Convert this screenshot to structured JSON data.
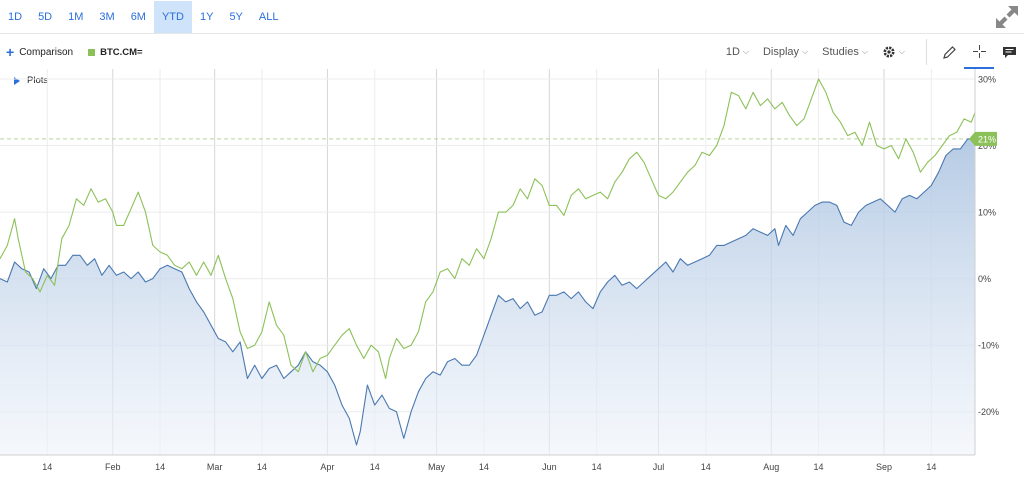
{
  "range_buttons": [
    {
      "label": "1D",
      "active": false
    },
    {
      "label": "5D",
      "active": false
    },
    {
      "label": "1M",
      "active": false
    },
    {
      "label": "3M",
      "active": false
    },
    {
      "label": "6M",
      "active": false
    },
    {
      "label": "YTD",
      "active": true
    },
    {
      "label": "1Y",
      "active": false
    },
    {
      "label": "5Y",
      "active": false
    },
    {
      "label": "ALL",
      "active": false
    }
  ],
  "toolbar": {
    "comparison_label": "Comparison",
    "symbol": "BTC.CM=",
    "interval_label": "1D",
    "display_label": "Display",
    "studies_label": "Studies"
  },
  "plots_label": "Plots",
  "icons": {
    "expand": "expand-arrows-icon",
    "settings": "gear-icon",
    "draw": "pencil-icon",
    "crosshair": "crosshair-icon",
    "comments": "comment-icon"
  },
  "chart_data": {
    "type": "line",
    "x_tick_labels": [
      {
        "label": "14",
        "day": 13
      },
      {
        "label": "Feb",
        "day": 31
      },
      {
        "label": "14",
        "day": 44
      },
      {
        "label": "Mar",
        "day": 59
      },
      {
        "label": "14",
        "day": 72
      },
      {
        "label": "Apr",
        "day": 90
      },
      {
        "label": "14",
        "day": 103
      },
      {
        "label": "May",
        "day": 120
      },
      {
        "label": "14",
        "day": 133
      },
      {
        "label": "Jun",
        "day": 151
      },
      {
        "label": "14",
        "day": 164
      },
      {
        "label": "Jul",
        "day": 181
      },
      {
        "label": "14",
        "day": 194
      },
      {
        "label": "Aug",
        "day": 212
      },
      {
        "label": "14",
        "day": 225
      },
      {
        "label": "Sep",
        "day": 243
      },
      {
        "label": "14",
        "day": 256
      }
    ],
    "y_ticks": [
      -20,
      -10,
      0,
      10,
      20,
      30
    ],
    "y_tick_labels": [
      "-20%",
      "-10%",
      "0%",
      "10%",
      "20%",
      "30%"
    ],
    "ylim": [
      -26.5,
      31.5
    ],
    "xlim": [
      0,
      268
    ],
    "current_value_label": "21%",
    "current_value": 21,
    "series": [
      {
        "color": "#4a78b0",
        "fill": true,
        "points": [
          [
            0,
            0
          ],
          [
            2,
            -0.5
          ],
          [
            4,
            2.5
          ],
          [
            6,
            1.5
          ],
          [
            8,
            1
          ],
          [
            10,
            -1.5
          ],
          [
            12,
            1.5
          ],
          [
            14,
            0
          ],
          [
            16,
            2
          ],
          [
            18,
            2
          ],
          [
            20,
            3.5
          ],
          [
            22,
            3.5
          ],
          [
            24,
            2
          ],
          [
            26,
            3
          ],
          [
            28,
            0.5
          ],
          [
            30,
            2
          ],
          [
            32,
            0.5
          ],
          [
            34,
            1
          ],
          [
            36,
            0
          ],
          [
            38,
            1
          ],
          [
            40,
            -0.5
          ],
          [
            42,
            0
          ],
          [
            44,
            1.5
          ],
          [
            46,
            2
          ],
          [
            48,
            1.5
          ],
          [
            50,
            1
          ],
          [
            52,
            -1.5
          ],
          [
            54,
            -3.5
          ],
          [
            56,
            -5
          ],
          [
            58,
            -7
          ],
          [
            60,
            -9
          ],
          [
            62,
            -9.5
          ],
          [
            64,
            -11
          ],
          [
            66,
            -9.5
          ],
          [
            68,
            -15
          ],
          [
            70,
            -13
          ],
          [
            72,
            -15
          ],
          [
            74,
            -13.5
          ],
          [
            76,
            -13
          ],
          [
            78,
            -15
          ],
          [
            80,
            -14
          ],
          [
            82,
            -13
          ],
          [
            84,
            -11
          ],
          [
            86,
            -12.5
          ],
          [
            88,
            -13
          ],
          [
            90,
            -14
          ],
          [
            92,
            -16
          ],
          [
            94,
            -19
          ],
          [
            96,
            -21
          ],
          [
            98,
            -25
          ],
          [
            99,
            -23
          ],
          [
            101,
            -16
          ],
          [
            103,
            -19
          ],
          [
            105,
            -17.5
          ],
          [
            107,
            -19.5
          ],
          [
            109,
            -20
          ],
          [
            111,
            -24
          ],
          [
            113,
            -20
          ],
          [
            115,
            -17
          ],
          [
            117,
            -15
          ],
          [
            119,
            -14
          ],
          [
            121,
            -14.5
          ],
          [
            123,
            -12.5
          ],
          [
            125,
            -12
          ],
          [
            127,
            -13
          ],
          [
            129,
            -13
          ],
          [
            131,
            -11.5
          ],
          [
            133,
            -8.5
          ],
          [
            135,
            -5.5
          ],
          [
            137,
            -2.5
          ],
          [
            139,
            -3.5
          ],
          [
            141,
            -3
          ],
          [
            143,
            -4.5
          ],
          [
            145,
            -3.5
          ],
          [
            147,
            -5.5
          ],
          [
            149,
            -5
          ],
          [
            151,
            -2.5
          ],
          [
            153,
            -2.5
          ],
          [
            155,
            -2
          ],
          [
            157,
            -3
          ],
          [
            159,
            -2
          ],
          [
            161,
            -3.5
          ],
          [
            163,
            -4.5
          ],
          [
            165,
            -2
          ],
          [
            167,
            -0.5
          ],
          [
            169,
            0.5
          ],
          [
            171,
            -1
          ],
          [
            173,
            -0.5
          ],
          [
            175,
            -1.5
          ],
          [
            177,
            -0.5
          ],
          [
            179,
            0.5
          ],
          [
            181,
            1.5
          ],
          [
            183,
            2.5
          ],
          [
            185,
            1
          ],
          [
            187,
            3
          ],
          [
            189,
            2
          ],
          [
            191,
            2.5
          ],
          [
            193,
            3
          ],
          [
            195,
            3.5
          ],
          [
            197,
            5
          ],
          [
            199,
            5
          ],
          [
            201,
            5.5
          ],
          [
            203,
            6
          ],
          [
            205,
            6.5
          ],
          [
            207,
            7.5
          ],
          [
            209,
            7
          ],
          [
            211,
            6.5
          ],
          [
            213,
            7.5
          ],
          [
            214,
            5
          ],
          [
            216,
            8
          ],
          [
            218,
            6.5
          ],
          [
            220,
            9
          ],
          [
            222,
            10
          ],
          [
            224,
            11
          ],
          [
            226,
            11.5
          ],
          [
            228,
            11.5
          ],
          [
            230,
            11
          ],
          [
            232,
            8.5
          ],
          [
            234,
            8
          ],
          [
            236,
            10
          ],
          [
            238,
            11
          ],
          [
            240,
            11.5
          ],
          [
            242,
            12
          ],
          [
            244,
            11
          ],
          [
            246,
            10
          ],
          [
            248,
            12
          ],
          [
            250,
            12.5
          ],
          [
            252,
            12
          ],
          [
            254,
            13
          ],
          [
            256,
            14
          ],
          [
            258,
            16
          ],
          [
            260,
            18.5
          ],
          [
            262,
            19.5
          ],
          [
            264,
            19.5
          ],
          [
            266,
            21
          ],
          [
            268,
            21
          ]
        ]
      },
      {
        "color": "#8cc159",
        "fill": false,
        "points": [
          [
            0,
            3
          ],
          [
            2,
            5
          ],
          [
            4,
            9
          ],
          [
            5,
            6
          ],
          [
            7,
            1
          ],
          [
            9,
            0
          ],
          [
            11,
            -2
          ],
          [
            13,
            0.5
          ],
          [
            15,
            -1
          ],
          [
            17,
            6
          ],
          [
            19,
            8
          ],
          [
            21,
            12
          ],
          [
            23,
            11
          ],
          [
            25,
            13.5
          ],
          [
            27,
            11.5
          ],
          [
            29,
            12
          ],
          [
            31,
            10
          ],
          [
            32,
            8
          ],
          [
            34,
            8
          ],
          [
            36,
            10.5
          ],
          [
            38,
            13
          ],
          [
            40,
            10
          ],
          [
            42,
            5
          ],
          [
            44,
            4
          ],
          [
            46,
            3.5
          ],
          [
            48,
            2
          ],
          [
            50,
            1.5
          ],
          [
            52,
            2.5
          ],
          [
            54,
            0.5
          ],
          [
            56,
            2.5
          ],
          [
            58,
            0.5
          ],
          [
            60,
            3.5
          ],
          [
            62,
            0
          ],
          [
            64,
            -3
          ],
          [
            66,
            -8
          ],
          [
            68,
            -10.5
          ],
          [
            70,
            -10
          ],
          [
            72,
            -8
          ],
          [
            74,
            -3.5
          ],
          [
            76,
            -7
          ],
          [
            78,
            -8.5
          ],
          [
            80,
            -13
          ],
          [
            82,
            -14
          ],
          [
            84,
            -11
          ],
          [
            86,
            -14
          ],
          [
            88,
            -12
          ],
          [
            90,
            -11.5
          ],
          [
            92,
            -10
          ],
          [
            94,
            -8.5
          ],
          [
            96,
            -7.5
          ],
          [
            98,
            -10
          ],
          [
            100,
            -12
          ],
          [
            102,
            -10
          ],
          [
            104,
            -11
          ],
          [
            106,
            -15
          ],
          [
            107,
            -12
          ],
          [
            109,
            -9
          ],
          [
            111,
            -10.5
          ],
          [
            113,
            -10
          ],
          [
            115,
            -8
          ],
          [
            117,
            -3.5
          ],
          [
            119,
            -2
          ],
          [
            121,
            1
          ],
          [
            123,
            1.5
          ],
          [
            125,
            0
          ],
          [
            127,
            3
          ],
          [
            129,
            2
          ],
          [
            131,
            4.5
          ],
          [
            133,
            3
          ],
          [
            135,
            6
          ],
          [
            137,
            10
          ],
          [
            139,
            10
          ],
          [
            141,
            11
          ],
          [
            143,
            13.5
          ],
          [
            145,
            12
          ],
          [
            147,
            15
          ],
          [
            149,
            14
          ],
          [
            151,
            11
          ],
          [
            153,
            11
          ],
          [
            155,
            9.5
          ],
          [
            157,
            12.5
          ],
          [
            159,
            13.5
          ],
          [
            161,
            12
          ],
          [
            163,
            12.5
          ],
          [
            165,
            13
          ],
          [
            167,
            12
          ],
          [
            169,
            14.5
          ],
          [
            171,
            16
          ],
          [
            173,
            18
          ],
          [
            175,
            19
          ],
          [
            177,
            17.5
          ],
          [
            179,
            15
          ],
          [
            181,
            12.5
          ],
          [
            183,
            12
          ],
          [
            185,
            13
          ],
          [
            187,
            14.5
          ],
          [
            189,
            16
          ],
          [
            191,
            17
          ],
          [
            193,
            19
          ],
          [
            195,
            18.5
          ],
          [
            197,
            20
          ],
          [
            199,
            23
          ],
          [
            201,
            28
          ],
          [
            203,
            27.5
          ],
          [
            205,
            25.5
          ],
          [
            207,
            28
          ],
          [
            209,
            26
          ],
          [
            211,
            27
          ],
          [
            213,
            25.5
          ],
          [
            215,
            26.5
          ],
          [
            217,
            24.5
          ],
          [
            219,
            23
          ],
          [
            221,
            24
          ],
          [
            223,
            27
          ],
          [
            225,
            30
          ],
          [
            227,
            28
          ],
          [
            229,
            25
          ],
          [
            231,
            23.5
          ],
          [
            233,
            21.5
          ],
          [
            235,
            22
          ],
          [
            237,
            20
          ],
          [
            239,
            23.5
          ],
          [
            241,
            20
          ],
          [
            243,
            19.5
          ],
          [
            245,
            20
          ],
          [
            247,
            18
          ],
          [
            249,
            21
          ],
          [
            251,
            19
          ],
          [
            253,
            16
          ],
          [
            255,
            17.5
          ],
          [
            257,
            18.5
          ],
          [
            259,
            20
          ],
          [
            261,
            21.5
          ],
          [
            263,
            22
          ],
          [
            265,
            24
          ],
          [
            267,
            23.5
          ],
          [
            268,
            25
          ]
        ]
      }
    ]
  }
}
